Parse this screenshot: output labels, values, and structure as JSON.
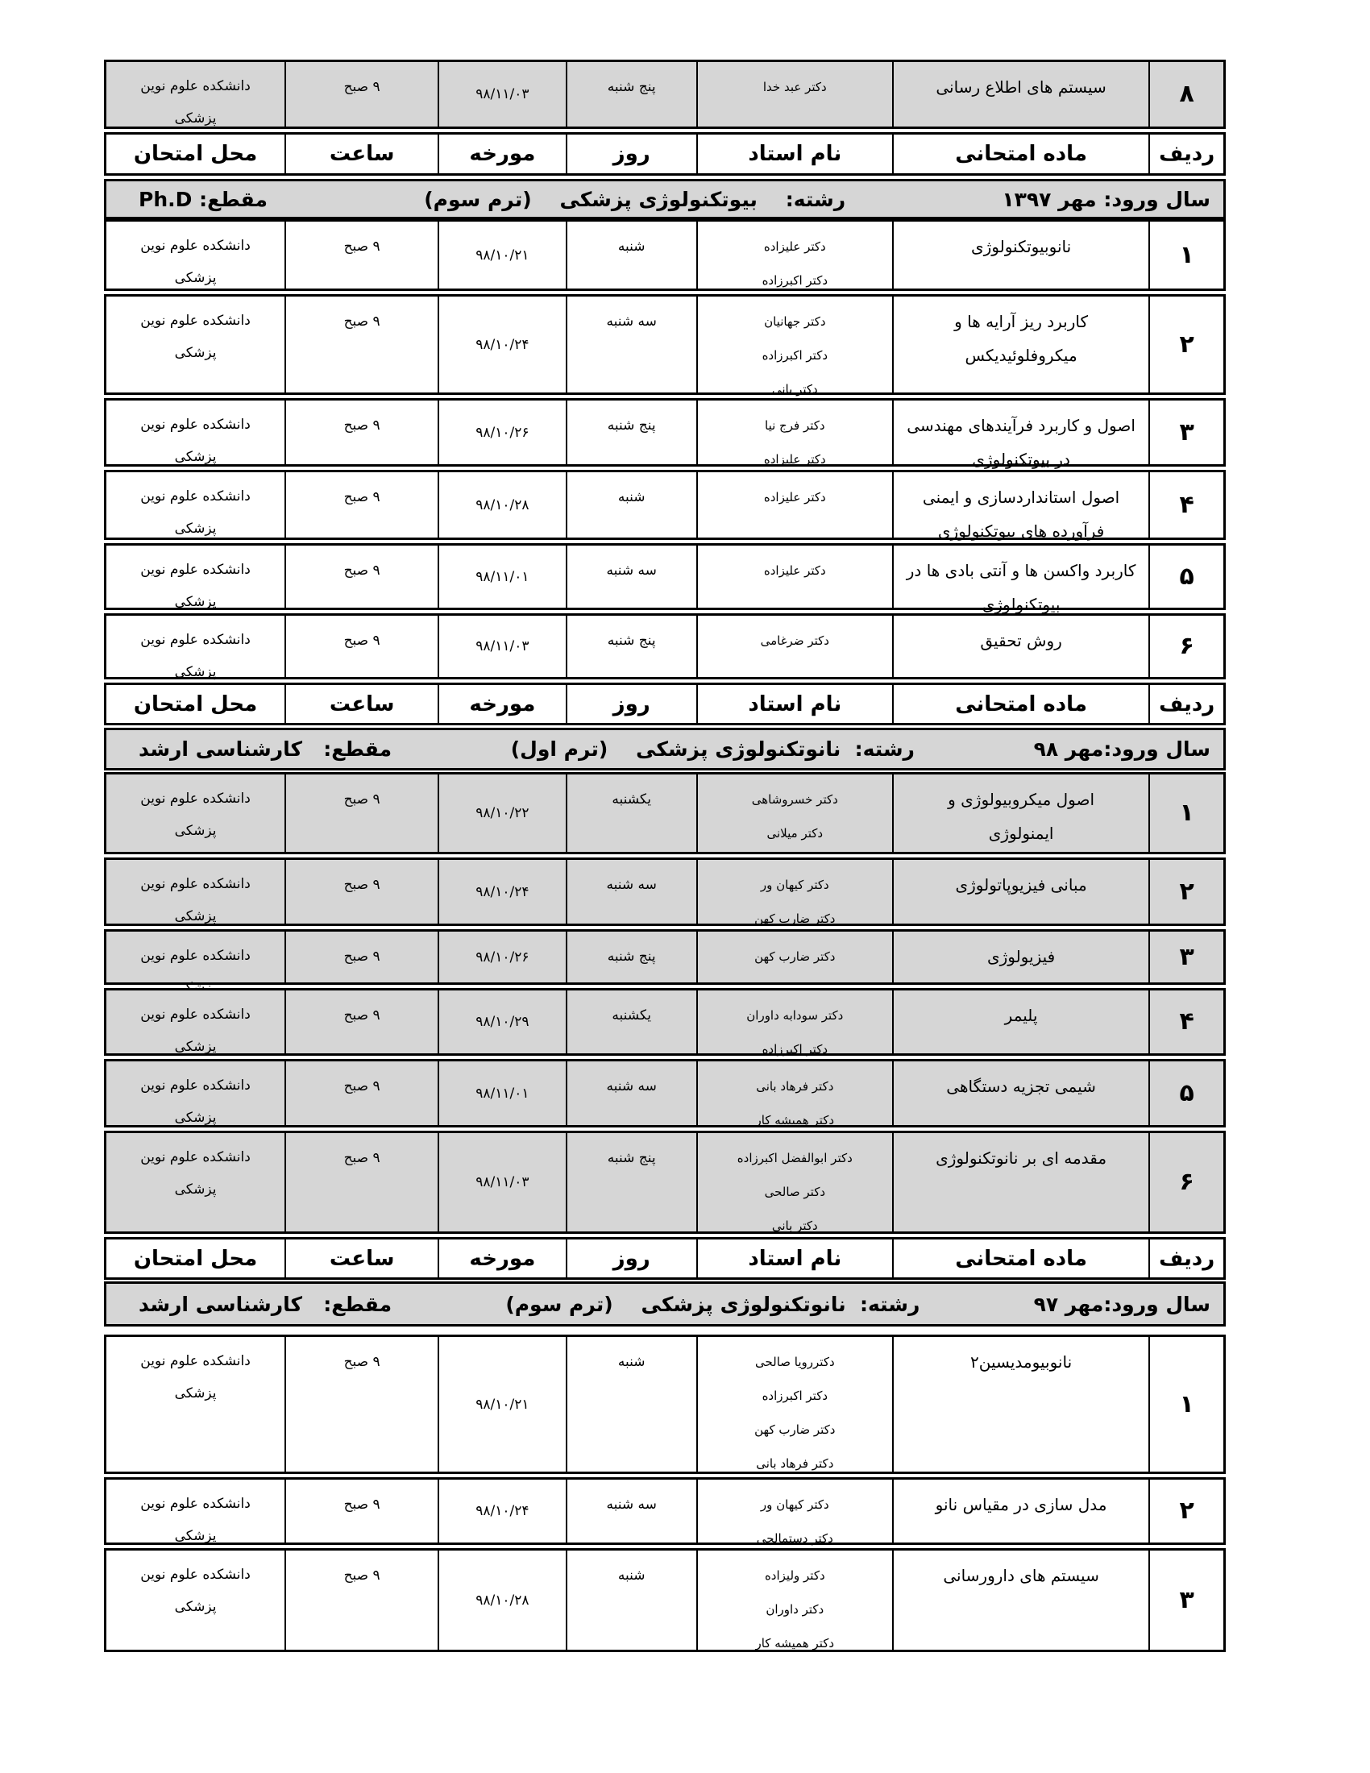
{
  "header_labels": {
    "idx": "ردیف",
    "subject": "ماده امتحانی",
    "professor": "نام استاد",
    "day": "روز",
    "date": "مورخه",
    "time": "ساعت",
    "place": "محل امتحان"
  },
  "top_row": {
    "idx": "۸",
    "subject": [
      "سیستم های اطلاع رسانی"
    ],
    "professor": [
      "دکتر عبد خدا"
    ],
    "day": "پنج شنبه",
    "date": "۹۸/۱۱/۰۳",
    "time": "۹ صبح",
    "place": [
      "دانشکده علوم نوین",
      "پزشکی"
    ]
  },
  "sections": [
    {
      "level": "مقطع: Ph.D",
      "major": "رشته:    بیوتکنولوژی پزشکی    (ترم سوم)",
      "entry": "سال ورود: مهر ۱۳۹۷",
      "rows": [
        {
          "idx": "۱",
          "subject": [
            "نانوبیوتکنولوژی"
          ],
          "professor": [
            "دکتر علیزاده",
            "دکتر اکبرزاده"
          ],
          "day": "شنبه",
          "date": "۹۸/۱۰/۲۱",
          "time": "۹ صبح",
          "place": [
            "دانشکده علوم نوین",
            "پزشکی"
          ]
        },
        {
          "idx": "۲",
          "subject": [
            "کاربرد ریز آرایه ها و",
            "میکروفلوئیدیکس"
          ],
          "professor": [
            "دکتر جهانیان",
            "دکتر اکبرزاده",
            "دکتر بانی"
          ],
          "day": "سه شنبه",
          "date": "۹۸/۱۰/۲۴",
          "time": "۹ صبح",
          "place": [
            "دانشکده علوم نوین",
            "پزشکی"
          ]
        },
        {
          "idx": "۳",
          "subject": [
            "اصول و کاربرد فرآیندهای مهندسی",
            "در بیوتکنولوژی"
          ],
          "professor": [
            "دکتر فرج نیا",
            "دکتر علیزاده"
          ],
          "day": "پنج شنبه",
          "date": "۹۸/۱۰/۲۶",
          "time": "۹ صبح",
          "place": [
            "دانشکده علوم نوین",
            "پزشکی"
          ]
        },
        {
          "idx": "۴",
          "subject": [
            "اصول استانداردسازی و ایمنی",
            "فرآورده های بیوتکنولوژی"
          ],
          "professor": [
            "دکتر علیزاده"
          ],
          "day": "شنبه",
          "date": "۹۸/۱۰/۲۸",
          "time": "۹ صبح",
          "place": [
            "دانشکده علوم نوین",
            "پزشکی"
          ]
        },
        {
          "idx": "۵",
          "subject": [
            "کاربرد واکسن ها و آنتی بادی ها در",
            "بیوتکنولوژی"
          ],
          "professor": [
            "دکتر علیزاده"
          ],
          "day": "سه شنبه",
          "date": "۹۸/۱۱/۰۱",
          "time": "۹ صبح",
          "place": [
            "دانشکده علوم نوین",
            "پزشکی"
          ]
        },
        {
          "idx": "۶",
          "subject": [
            "روش تحقیق"
          ],
          "professor": [
            "دکتر ضرغامی"
          ],
          "day": "پنج شنبه",
          "date": "۹۸/۱۱/۰۳",
          "time": "۹ صبح",
          "place": [
            "دانشکده علوم نوین",
            "پزشکی"
          ]
        }
      ]
    },
    {
      "level": "مقطع:   کارشناسی ارشد",
      "major": "رشته:  نانوتکنولوژی پزشکی    (ترم اول)",
      "entry": "سال ورود:مهر ۹۸",
      "rows": [
        {
          "idx": "۱",
          "subject": [
            "اصول میکروبیولوژی و",
            "ایمنولوژی"
          ],
          "professor": [
            "دکتر خسروشاهی",
            "دکتر میلانی"
          ],
          "day": "یکشنبه",
          "date": "۹۸/۱۰/۲۲",
          "time": "۹ صبح",
          "place": [
            "دانشکده علوم نوین",
            "پزشکی"
          ]
        },
        {
          "idx": "۲",
          "subject": [
            "مبانی فیزیوپاتولوژی"
          ],
          "professor": [
            "دکتر کیهان ور",
            "دکتر ضارب کهن"
          ],
          "day": "سه شنبه",
          "date": "۹۸/۱۰/۲۴",
          "time": "۹ صبح",
          "place": [
            "دانشکده علوم نوین",
            "پزشکی"
          ]
        },
        {
          "idx": "۳",
          "subject": [
            "فیزیولوژی"
          ],
          "professor": [
            "دکتر ضارب کهن"
          ],
          "day": "پنج شنبه",
          "date": "۹۸/۱۰/۲۶",
          "time": "۹ صبح",
          "place": [
            "دانشکده علوم نوین",
            "پزشکی"
          ]
        },
        {
          "idx": "۴",
          "subject": [
            "پلیمر"
          ],
          "professor": [
            "دکتر سودابه داوران",
            "دکتر اکبرزاده"
          ],
          "day": "یکشنبه",
          "date": "۹۸/۱۰/۲۹",
          "time": "۹ صبح",
          "place": [
            "دانشکده علوم نوین",
            "پزشکی"
          ]
        },
        {
          "idx": "۵",
          "subject": [
            "شیمی تجزیه دستگاهی"
          ],
          "professor": [
            "دکتر فرهاد بانی",
            "دکتر همیشه کار"
          ],
          "day": "سه شنبه",
          "date": "۹۸/۱۱/۰۱",
          "time": "۹ صبح",
          "place": [
            "دانشکده علوم نوین",
            "پزشکی"
          ]
        },
        {
          "idx": "۶",
          "subject": [
            "مقدمه ای بر نانوتکنولوژی"
          ],
          "professor": [
            "دکتر ابوالفضل اکبرزاده",
            "دکتر صالحی",
            "دکتر بانی"
          ],
          "day": "پنج شنبه",
          "date": "۹۸/۱۱/۰۳",
          "time": "۹ صبح",
          "place": [
            "دانشکده علوم نوین",
            "پزشکی"
          ]
        }
      ]
    },
    {
      "level": "مقطع:   کارشناسی ارشد",
      "major": "رشته:  نانوتکنولوژی پزشکی    (ترم سوم)",
      "entry": "سال ورود:مهر ۹۷",
      "rows": [
        {
          "idx": "۱",
          "subject": [
            "نانوبیومدیسین۲"
          ],
          "professor": [
            "دکتررویا صالحی",
            "دکتر اکبرزاده",
            "دکتر ضارب کهن",
            "دکتر فرهاد بانی"
          ],
          "day": "شنبه",
          "date": "۹۸/۱۰/۲۱",
          "time": "۹ صبح",
          "place": [
            "دانشکده علوم نوین",
            "پزشکی"
          ]
        },
        {
          "idx": "۲",
          "subject": [
            "مدل سازی در مقیاس نانو"
          ],
          "professor": [
            "دکتر کیهان ور",
            "دکتر دستمالچی"
          ],
          "day": "سه شنبه",
          "date": "۹۸/۱۰/۲۴",
          "time": "۹ صبح",
          "place": [
            "دانشکده علوم نوین",
            "پزشکی"
          ]
        },
        {
          "idx": "۳",
          "subject": [
            "سیستم های دارورسانی"
          ],
          "professor": [
            "دکتر ولیزاده",
            "دکتر داوران",
            "دکتر همیشه کار"
          ],
          "day": "شنبه",
          "date": "۹۸/۱۰/۲۸",
          "time": "۹ صبح",
          "place": [
            "دانشکده علوم نوین",
            "پزشکی"
          ]
        }
      ]
    }
  ]
}
